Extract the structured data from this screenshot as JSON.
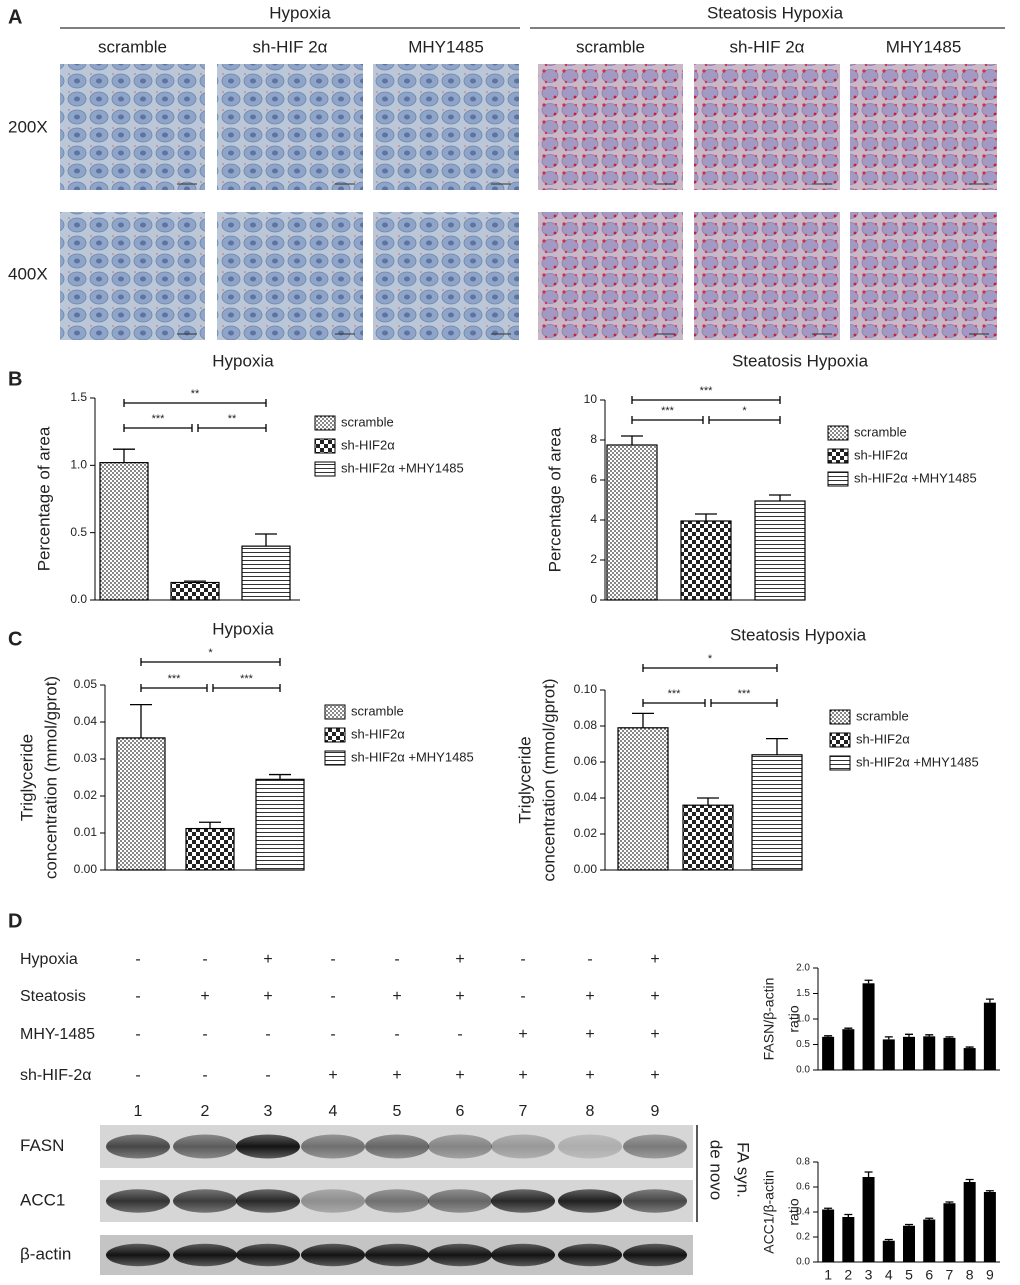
{
  "panel_labels": {
    "a": "A",
    "b": "B",
    "c": "C",
    "d": "D"
  },
  "micrographs": {
    "groups": [
      "Hypoxia",
      "Steatosis Hypoxia"
    ],
    "columns": [
      "scramble",
      "sh-HIF 2α",
      "MHY1485",
      "scramble",
      "sh-HIF 2α",
      "MHY1485"
    ],
    "magnifications": [
      "200X",
      "400X"
    ]
  },
  "chart_data": [
    {
      "type": "bar",
      "title": "Hypoxia",
      "y_label": [
        "Percentage of area"
      ],
      "ylim": [
        0,
        1.5
      ],
      "yticks": [
        {
          "value": 0,
          "label": "0.0"
        },
        {
          "value": 0.5,
          "label": "0.5"
        },
        {
          "value": 1,
          "label": "1.0"
        },
        {
          "value": 1.5,
          "label": "1.5"
        }
      ],
      "series": [
        {
          "name": "scramble",
          "pattern": "dots",
          "values": [
            1.02
          ],
          "errors": [
            0.1
          ]
        },
        {
          "name": "sh-HIF2α",
          "pattern": "checker",
          "values": [
            0.13
          ],
          "errors": [
            0.01
          ]
        },
        {
          "name": "sh-HIF2α +MHY1485",
          "pattern": "hlines",
          "values": [
            0.4
          ],
          "errors": [
            0.09
          ]
        }
      ],
      "significance": [
        "***",
        "**",
        "**"
      ]
    },
    {
      "type": "bar",
      "title": "Steatosis Hypoxia",
      "y_label": [
        "Percentage of area"
      ],
      "ylim": [
        0,
        10
      ],
      "yticks": [
        0,
        2,
        4,
        6,
        8,
        10
      ],
      "series": [
        {
          "name": "scramble",
          "pattern": "dots",
          "values": [
            7.75
          ],
          "errors": [
            0.45
          ]
        },
        {
          "name": "sh-HIF2α",
          "pattern": "checker",
          "values": [
            3.95
          ],
          "errors": [
            0.35
          ]
        },
        {
          "name": "sh-HIF2α +MHY1485",
          "pattern": "hlines",
          "values": [
            4.95
          ],
          "errors": [
            0.3
          ]
        }
      ],
      "significance": [
        "***",
        "*",
        "***"
      ]
    },
    {
      "type": "bar",
      "title": "Hypoxia",
      "y_label": [
        "Triglyceride",
        "concentration (mmol/gprot)"
      ],
      "ylim": [
        0,
        0.05
      ],
      "yticks": [
        {
          "value": 0,
          "label": "0.00"
        },
        {
          "value": 0.01,
          "label": "0.01"
        },
        {
          "value": 0.02,
          "label": "0.02"
        },
        {
          "value": 0.03,
          "label": "0.03"
        },
        {
          "value": 0.04,
          "label": "0.04"
        },
        {
          "value": 0.05,
          "label": "0.05"
        }
      ],
      "series": [
        {
          "name": "scramble",
          "pattern": "dots",
          "values": [
            0.0357
          ],
          "errors": [
            0.009
          ]
        },
        {
          "name": "sh-HIF2α",
          "pattern": "checker",
          "values": [
            0.0112
          ],
          "errors": [
            0.0017
          ]
        },
        {
          "name": "sh-HIF2α +MHY1485",
          "pattern": "hlines",
          "values": [
            0.0245
          ],
          "errors": [
            0.0013
          ]
        }
      ],
      "significance": [
        "***",
        "***",
        "*"
      ]
    },
    {
      "type": "bar",
      "title": "Steatosis Hypoxia",
      "y_label": [
        "Triglyceride",
        "concentration (mmol/gprot)"
      ],
      "ylim": [
        0,
        0.1
      ],
      "yticks": [
        {
          "value": 0,
          "label": "0.00"
        },
        {
          "value": 0.02,
          "label": "0.02"
        },
        {
          "value": 0.04,
          "label": "0.04"
        },
        {
          "value": 0.06,
          "label": "0.06"
        },
        {
          "value": 0.08,
          "label": "0.08"
        },
        {
          "value": 0.1,
          "label": "0.10"
        }
      ],
      "series": [
        {
          "name": "scramble",
          "pattern": "dots",
          "values": [
            0.079
          ],
          "errors": [
            0.008
          ]
        },
        {
          "name": "sh-HIF2α",
          "pattern": "checker",
          "values": [
            0.036
          ],
          "errors": [
            0.004
          ]
        },
        {
          "name": "sh-HIF2α +MHY1485",
          "pattern": "hlines",
          "values": [
            0.064
          ],
          "errors": [
            0.009
          ]
        }
      ],
      "significance": [
        "***",
        "***",
        "*"
      ]
    },
    {
      "type": "bar",
      "y_label": [
        "FASN/β-actin",
        "ratio"
      ],
      "color": "#000000",
      "ylim": [
        0,
        2
      ],
      "yticks": [
        {
          "value": 0,
          "label": "0.0"
        },
        {
          "value": 0.5,
          "label": "0.5"
        },
        {
          "value": 1,
          "label": "1.0"
        },
        {
          "value": 1.5,
          "label": "1.5"
        },
        {
          "value": 2,
          "label": "2.0"
        }
      ],
      "values": [
        0.65,
        0.8,
        1.7,
        0.6,
        0.65,
        0.66,
        0.63,
        0.43,
        1.32
      ],
      "errors": [
        0.02,
        0.02,
        0.06,
        0.05,
        0.05,
        0.03,
        0.02,
        0.02,
        0.07
      ]
    },
    {
      "type": "bar",
      "y_label": [
        "ACC1/β-actin",
        "ratio"
      ],
      "color": "#000000",
      "ylim": [
        0,
        0.8
      ],
      "yticks": [
        {
          "value": 0,
          "label": "0.0"
        },
        {
          "value": 0.2,
          "label": "0.2"
        },
        {
          "value": 0.4,
          "label": "0.4"
        },
        {
          "value": 0.6,
          "label": "0.6"
        },
        {
          "value": 0.8,
          "label": "0.8"
        }
      ],
      "categories": [
        "1",
        "2",
        "3",
        "4",
        "5",
        "6",
        "7",
        "8",
        "9"
      ],
      "values": [
        0.42,
        0.36,
        0.68,
        0.17,
        0.29,
        0.34,
        0.47,
        0.64,
        0.56
      ],
      "errors": [
        0.01,
        0.02,
        0.04,
        0.01,
        0.01,
        0.01,
        0.01,
        0.02,
        0.01
      ]
    }
  ],
  "western_blot": {
    "conditions": [
      {
        "name": "Hypoxia",
        "signs": [
          "-",
          "-",
          "+",
          "-",
          "-",
          "+",
          "-",
          "-",
          "+"
        ]
      },
      {
        "name": "Steatosis",
        "signs": [
          "-",
          "+",
          "+",
          "-",
          "+",
          "+",
          "-",
          "+",
          "+"
        ]
      },
      {
        "name": "MHY-1485",
        "signs": [
          "-",
          "-",
          "-",
          "-",
          "-",
          "-",
          "+",
          "+",
          "+"
        ]
      },
      {
        "name": "sh-HIF-2α",
        "signs": [
          "-",
          "-",
          "-",
          "+",
          "+",
          "+",
          "+",
          "+",
          "+"
        ]
      }
    ],
    "lanes": [
      "1",
      "2",
      "3",
      "4",
      "5",
      "6",
      "7",
      "8",
      "9"
    ],
    "proteins": [
      "FASN",
      "ACC1",
      "β-actin"
    ],
    "bracket": [
      "de novo",
      "FA syn."
    ]
  }
}
